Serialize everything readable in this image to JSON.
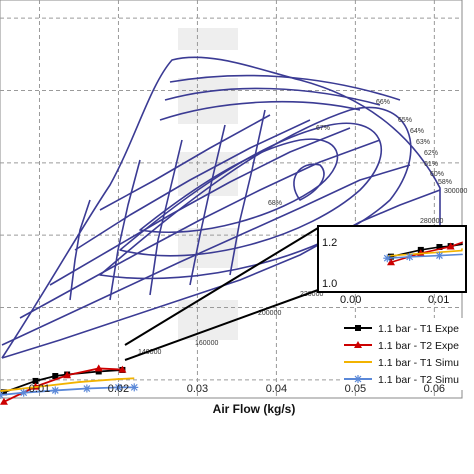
{
  "chart_data": {
    "type": "line",
    "title": "",
    "xlabel": "Air Flow (kg/s)",
    "ylabel": "",
    "xlim": [
      0.005,
      0.0635
    ],
    "ylim": [
      1.0,
      2.05
    ],
    "x_ticks": [
      "0.01",
      "0.02",
      "0.03",
      "0.04",
      "0.05",
      "0.06"
    ],
    "grid": "dashed",
    "legend_position": "bottom-right",
    "efficiency_labels": [
      "66%",
      "65%",
      "64%",
      "63%",
      "62%",
      "61%",
      "60%",
      "58%",
      "67%",
      "68%"
    ],
    "speed_labels": [
      "140000",
      "160000",
      "200000",
      "220000",
      "280000",
      "300000"
    ],
    "series": [
      {
        "name": "1.1 bar - T1 Expe",
        "color": "#000000",
        "marker": "square",
        "x": [
          0.0055,
          0.0095,
          0.012,
          0.0135,
          0.0175,
          0.0205
        ],
        "y": [
          1.015,
          1.045,
          1.058,
          1.062,
          1.07,
          1.074
        ]
      },
      {
        "name": "1.1 bar - T2 Expe",
        "color": "#cc0000",
        "marker": "triangle",
        "x": [
          0.0055,
          0.0095,
          0.0135,
          0.0175,
          0.0205
        ],
        "y": [
          0.99,
          1.03,
          1.06,
          1.078,
          1.075
        ]
      },
      {
        "name": "1.1 bar - T1 Simu",
        "color": "#f2b300",
        "marker": "none",
        "x": [
          0.005,
          0.01,
          0.015,
          0.02,
          0.022
        ],
        "y": [
          1.018,
          1.03,
          1.042,
          1.05,
          1.052
        ]
      },
      {
        "name": "1.1 bar - T2 Simu",
        "color": "#5a88d8",
        "marker": "star",
        "x": [
          0.005,
          0.008,
          0.012,
          0.016,
          0.02,
          0.022
        ],
        "y": [
          1.008,
          1.014,
          1.02,
          1.025,
          1.028,
          1.028
        ]
      }
    ],
    "inset": {
      "x_ticks": [
        "0.00",
        "0.01"
      ],
      "y_ticks": [
        "1.0",
        "1.2"
      ]
    }
  }
}
